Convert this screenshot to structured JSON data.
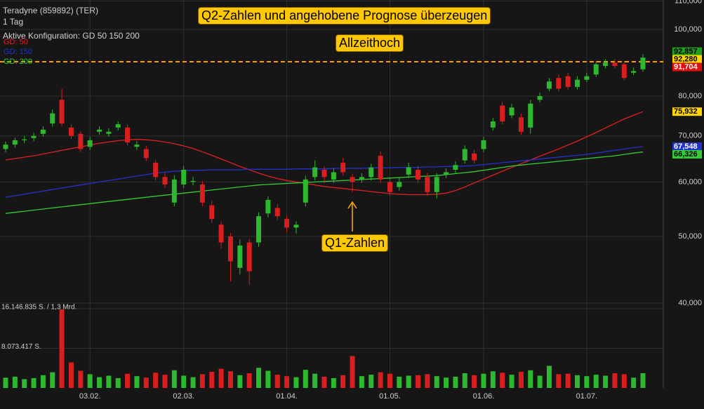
{
  "chart_data": {
    "type": "candlestick",
    "title": "Teradyne (859892) (TER)",
    "subtitle": "1 Tag",
    "config_label": "Aktive Konfiguration: GD 50 150 200",
    "log_scale": true,
    "grid": true,
    "legend_position": "top-left",
    "ylim": [
      39250,
      110370
    ],
    "yticks": [
      {
        "value": 40000,
        "label": "40,000"
      },
      {
        "value": 50000,
        "label": "50,000"
      },
      {
        "value": 60000,
        "label": "60,000"
      },
      {
        "value": 70000,
        "label": "70,000"
      },
      {
        "value": 80000,
        "label": "80,000"
      },
      {
        "value": 100000,
        "label": "100,000"
      },
      {
        "value": 110000,
        "label": "110,000"
      }
    ],
    "categories": [
      null,
      null,
      null,
      null,
      null,
      null,
      null,
      null,
      null,
      "03.02.",
      null,
      null,
      null,
      null,
      null,
      null,
      null,
      null,
      null,
      "02.03.",
      null,
      null,
      null,
      null,
      null,
      null,
      null,
      null,
      null,
      null,
      "01.04.",
      null,
      null,
      null,
      null,
      null,
      null,
      null,
      null,
      null,
      null,
      "01.05.",
      null,
      null,
      null,
      null,
      null,
      null,
      null,
      null,
      null,
      "01.06.",
      null,
      null,
      null,
      null,
      null,
      null,
      null,
      null,
      null,
      null,
      "01.07.",
      null,
      null,
      null,
      null,
      null,
      null
    ],
    "candles": {
      "up_color": "#2db92d",
      "down_color": "#d81e1e",
      "open": [
        67000,
        68000,
        69000,
        69500,
        70500,
        73000,
        79000,
        72000,
        70500,
        67500,
        71000,
        70500,
        72000,
        72000,
        67500,
        67000,
        64000,
        61000,
        56000,
        59500,
        60000,
        59500,
        55500,
        52000,
        50000,
        45000,
        49000,
        49000,
        54000,
        55000,
        53000,
        51500,
        56000,
        61000,
        62500,
        60500,
        64000,
        61000,
        60500,
        61000,
        65500,
        60000,
        59000,
        61500,
        62500,
        61000,
        58000,
        61500,
        62500,
        64500,
        66000,
        67000,
        72000,
        77500,
        75000,
        74500,
        72000,
        79000,
        82000,
        85000,
        85500,
        82500,
        84500,
        86000,
        88500,
        89500,
        89000,
        86500,
        87500
      ],
      "high": [
        68700,
        69600,
        70000,
        70800,
        72300,
        76500,
        82000,
        72800,
        71200,
        69800,
        72300,
        71800,
        73500,
        72800,
        68800,
        67700,
        64700,
        61800,
        61400,
        63300,
        61000,
        60200,
        56300,
        52600,
        50600,
        49500,
        49600,
        54200,
        57200,
        55700,
        53600,
        52600,
        61300,
        64500,
        63200,
        62800,
        65000,
        61700,
        61800,
        63800,
        66500,
        60700,
        60800,
        64000,
        63300,
        61800,
        61800,
        62800,
        64300,
        67800,
        66800,
        69800,
        74400,
        78500,
        78000,
        75400,
        79000,
        81000,
        85000,
        86000,
        86500,
        85500,
        86500,
        90000,
        90500,
        90500,
        90000,
        88000,
        92100
      ],
      "low": [
        66300,
        67300,
        68300,
        68800,
        69800,
        72200,
        72200,
        69300,
        66300,
        66800,
        70300,
        69800,
        71300,
        67800,
        66800,
        64300,
        60300,
        58800,
        55300,
        58800,
        59300,
        55300,
        52300,
        48000,
        43000,
        44000,
        42500,
        48300,
        53300,
        52800,
        50700,
        50500,
        55300,
        60300,
        59800,
        59800,
        61300,
        58000,
        59800,
        60300,
        59800,
        57300,
        58300,
        60800,
        59800,
        57300,
        56800,
        60800,
        61800,
        63800,
        63800,
        66300,
        71300,
        72800,
        74300,
        70300,
        70500,
        78300,
        81300,
        81300,
        81800,
        81800,
        83800,
        85300,
        87800,
        87800,
        84300,
        85800,
        86800
      ],
      "close": [
        68000,
        69000,
        69200,
        70000,
        71500,
        75500,
        73000,
        70000,
        67000,
        69000,
        71500,
        71000,
        72800,
        68500,
        68000,
        65000,
        61000,
        59500,
        60500,
        62500,
        60200,
        56000,
        53000,
        49000,
        46000,
        48500,
        44500,
        53500,
        56500,
        53500,
        51500,
        52000,
        60500,
        63000,
        61000,
        62000,
        62000,
        60000,
        61000,
        63000,
        60500,
        58000,
        60000,
        63000,
        60500,
        58000,
        61000,
        62000,
        63500,
        67000,
        64500,
        69000,
        73500,
        73500,
        77000,
        71000,
        78000,
        80000,
        84000,
        82000,
        82500,
        84500,
        85500,
        89000,
        89500,
        88500,
        85000,
        87000,
        91000
      ]
    },
    "series": [
      {
        "name": "GD: 50",
        "color": "#e02020",
        "values": [
          64600,
          64900,
          65200,
          65500,
          65900,
          66300,
          66700,
          67100,
          67500,
          67900,
          68300,
          68600,
          68900,
          69100,
          69200,
          69100,
          68900,
          68600,
          68200,
          67700,
          67100,
          66400,
          65600,
          64800,
          64000,
          63200,
          62500,
          61800,
          61200,
          60700,
          60300,
          60000,
          59700,
          59400,
          59100,
          58900,
          58700,
          58500,
          58300,
          58100,
          57900,
          57700,
          57600,
          57500,
          57500,
          57500,
          57600,
          57800,
          58300,
          59000,
          59800,
          60600,
          61400,
          62200,
          63000,
          63800,
          64600,
          65400,
          66200,
          67000,
          67900,
          68800,
          69800,
          70800,
          71900,
          73000,
          74100,
          75000,
          75932
        ]
      },
      {
        "name": "GD: 150",
        "color": "#2233cc",
        "values": [
          57000,
          57300,
          57600,
          57900,
          58200,
          58500,
          58800,
          59100,
          59400,
          59700,
          60000,
          60300,
          60600,
          60900,
          61200,
          61500,
          61800,
          62000,
          62200,
          62300,
          62400,
          62400,
          62500,
          62500,
          62500,
          62500,
          62600,
          62600,
          62600,
          62600,
          62600,
          62700,
          62700,
          62700,
          62700,
          62800,
          62800,
          62800,
          62800,
          62900,
          62900,
          62900,
          63000,
          63000,
          63000,
          63100,
          63100,
          63200,
          63200,
          63300,
          63400,
          63600,
          63800,
          64000,
          64200,
          64400,
          64600,
          64800,
          65000,
          65200,
          65400,
          65600,
          65800,
          66100,
          66400,
          66700,
          67000,
          67300,
          67548
        ]
      },
      {
        "name": "GD: 200",
        "color": "#33cc33",
        "values": [
          54000,
          54200,
          54400,
          54600,
          54800,
          55000,
          55200,
          55400,
          55600,
          55800,
          56000,
          56200,
          56400,
          56600,
          56800,
          57000,
          57200,
          57400,
          57600,
          57800,
          58000,
          58200,
          58400,
          58600,
          58800,
          59000,
          59200,
          59400,
          59500,
          59600,
          59700,
          59800,
          59900,
          60000,
          60100,
          60200,
          60300,
          60400,
          60500,
          60600,
          60700,
          60800,
          60900,
          61000,
          61100,
          61200,
          61300,
          61500,
          61700,
          61900,
          62100,
          62400,
          62700,
          63000,
          63300,
          63500,
          63700,
          63900,
          64100,
          64300,
          64500,
          64700,
          64900,
          65100,
          65300,
          65500,
          65800,
          66100,
          66326
        ]
      }
    ],
    "volume": {
      "ylim": [
        0,
        16146835
      ],
      "yticks": [
        {
          "value": 16146835,
          "label": "16.146.835 S. / 1,3 Mrd."
        },
        {
          "value": 8073417,
          "label": "8.073.417 S."
        }
      ],
      "values": [
        2100000,
        2300000,
        1800000,
        2000000,
        2600000,
        3200000,
        16000000,
        5200000,
        3500000,
        2800000,
        2200000,
        2500000,
        2000000,
        2900000,
        2400000,
        2100000,
        3100000,
        2700000,
        3600000,
        2500000,
        2200000,
        2800000,
        3300000,
        3900000,
        3400000,
        2600000,
        3000000,
        4100000,
        3500000,
        2700000,
        2400000,
        2200000,
        3700000,
        2900000,
        2300000,
        2000000,
        2600000,
        6500000,
        2400000,
        2700000,
        3200000,
        2900000,
        2300000,
        2500000,
        2600000,
        2800000,
        2400000,
        2100000,
        2300000,
        3000000,
        2600000,
        2900000,
        3400000,
        3100000,
        2700000,
        3300000,
        3600000,
        2500000,
        4500000,
        2800000,
        2900000,
        2600000,
        2400000,
        2700000,
        2500000,
        3000000,
        2800000,
        2100000,
        3000000
      ]
    },
    "reference_line": {
      "value": 89760,
      "color": "#ff9900"
    },
    "last_values": [
      {
        "value": 92857,
        "label": "92,857",
        "color": "#1f9e1f",
        "text_color": "#000000"
      },
      {
        "value": 92280,
        "label": "92,280",
        "color": "#ffd400",
        "text_color": "#000000"
      },
      {
        "value": 91704,
        "label": "91,704",
        "color": "#e01010",
        "text_color": "#ffffff"
      },
      {
        "value": 75932,
        "label": "75,932",
        "color": "#ffd400",
        "text_color": "#000000"
      },
      {
        "value": 67548,
        "label": "67,548",
        "color": "#2233cc",
        "text_color": "#ffffff"
      },
      {
        "value": 66326,
        "label": "66,326",
        "color": "#33cc33",
        "text_color": "#000000"
      }
    ],
    "annotations": [
      "Q2-Zahlen und angehobene Prognose überzeugen",
      "Allzeithoch",
      "Q1-Zahlen"
    ]
  }
}
